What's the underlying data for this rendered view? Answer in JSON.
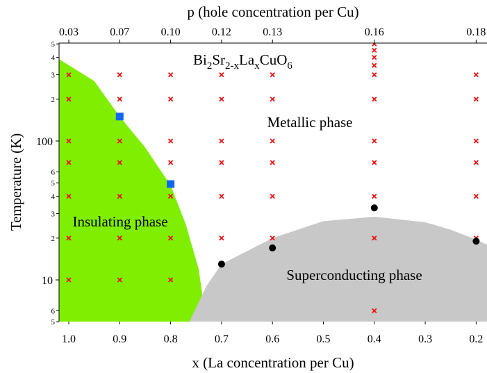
{
  "chart_data": {
    "type": "scatter",
    "title": "",
    "x_axis": {
      "label": "x (La concentration per Cu)",
      "range": [
        1.02,
        0.18
      ],
      "reversed": true,
      "ticks": [
        1.0,
        0.9,
        0.8,
        0.7,
        0.6,
        0.5,
        0.4,
        0.3,
        0.2
      ],
      "tick_labels": [
        "1.0",
        "0.9",
        "0.8",
        "0.7",
        "0.6",
        "0.5",
        "0.4",
        "0.3",
        "0.2"
      ]
    },
    "top_axis": {
      "label": "p (hole concentration per Cu)",
      "ticks_at_x": [
        1.0,
        0.9,
        0.8,
        0.7,
        0.6,
        0.4,
        0.2
      ],
      "tick_labels": [
        "0.03",
        "0.07",
        "0.10",
        "0.12",
        "0.13",
        "0.16",
        "0.18"
      ]
    },
    "y_axis": {
      "label": "Temperature (K)",
      "scale": "log",
      "range": [
        5,
        500
      ],
      "major_ticks": [
        10,
        100
      ],
      "major_labels": [
        "10",
        "100"
      ],
      "minor_ticks": [
        5,
        6,
        20,
        30,
        40,
        50,
        60,
        200,
        300,
        400,
        500
      ],
      "minor_labels": [
        "5",
        "6",
        "2",
        "3",
        "4",
        "5",
        "6",
        "2",
        "3",
        "4",
        "5"
      ]
    },
    "compound": {
      "base": "Bi",
      "s1": "2",
      "el2": "Sr",
      "s2": "2-x",
      "el3": "La",
      "s3": "x",
      "el4": "CuO",
      "s4": "6"
    },
    "regions": [
      {
        "name": "Insulating phase",
        "color": "#80ee00",
        "boundary": [
          [
            1.02,
            390
          ],
          [
            0.95,
            270
          ],
          [
            0.9,
            150
          ],
          [
            0.85,
            90
          ],
          [
            0.8,
            48
          ],
          [
            0.77,
            25
          ],
          [
            0.745,
            12
          ],
          [
            0.73,
            5
          ]
        ]
      },
      {
        "name": "Metallic phase"
      },
      {
        "name": "Superconducting phase",
        "color": "#c8c8c8",
        "boundary": [
          [
            0.763,
            5
          ],
          [
            0.73,
            9
          ],
          [
            0.7,
            13
          ],
          [
            0.6,
            20
          ],
          [
            0.5,
            26.5
          ],
          [
            0.4,
            28.5
          ],
          [
            0.3,
            26
          ],
          [
            0.25,
            23
          ],
          [
            0.2,
            19.5
          ],
          [
            0.18,
            18
          ]
        ]
      }
    ],
    "series": [
      {
        "marker": "cross",
        "color": "#ee1111",
        "points": [
          [
            1.0,
            300
          ],
          [
            1.0,
            200
          ],
          [
            1.0,
            100
          ],
          [
            1.0,
            70
          ],
          [
            1.0,
            40
          ],
          [
            1.0,
            20
          ],
          [
            1.0,
            10
          ],
          [
            0.9,
            300
          ],
          [
            0.9,
            200
          ],
          [
            0.9,
            100
          ],
          [
            0.9,
            70
          ],
          [
            0.9,
            40
          ],
          [
            0.9,
            20
          ],
          [
            0.9,
            10
          ],
          [
            0.8,
            300
          ],
          [
            0.8,
            200
          ],
          [
            0.8,
            100
          ],
          [
            0.8,
            70
          ],
          [
            0.8,
            40
          ],
          [
            0.8,
            20
          ],
          [
            0.8,
            10
          ],
          [
            0.7,
            300
          ],
          [
            0.7,
            200
          ],
          [
            0.7,
            100
          ],
          [
            0.7,
            70
          ],
          [
            0.7,
            40
          ],
          [
            0.7,
            20
          ],
          [
            0.6,
            300
          ],
          [
            0.6,
            200
          ],
          [
            0.6,
            100
          ],
          [
            0.6,
            70
          ],
          [
            0.6,
            40
          ],
          [
            0.6,
            20
          ],
          [
            0.4,
            500
          ],
          [
            0.4,
            450
          ],
          [
            0.4,
            400
          ],
          [
            0.4,
            350
          ],
          [
            0.4,
            300
          ],
          [
            0.4,
            200
          ],
          [
            0.4,
            100
          ],
          [
            0.4,
            70
          ],
          [
            0.4,
            40
          ],
          [
            0.4,
            20
          ],
          [
            0.4,
            6
          ],
          [
            0.2,
            300
          ],
          [
            0.2,
            200
          ],
          [
            0.2,
            100
          ],
          [
            0.2,
            70
          ],
          [
            0.2,
            40
          ],
          [
            0.2,
            20
          ]
        ]
      },
      {
        "marker": "square",
        "color": "#1166ee",
        "points": [
          [
            0.9,
            150
          ],
          [
            0.8,
            49
          ]
        ]
      },
      {
        "marker": "circle",
        "color": "#000000",
        "points": [
          [
            0.7,
            13
          ],
          [
            0.6,
            17
          ],
          [
            0.4,
            33
          ],
          [
            0.2,
            19
          ]
        ]
      }
    ]
  }
}
